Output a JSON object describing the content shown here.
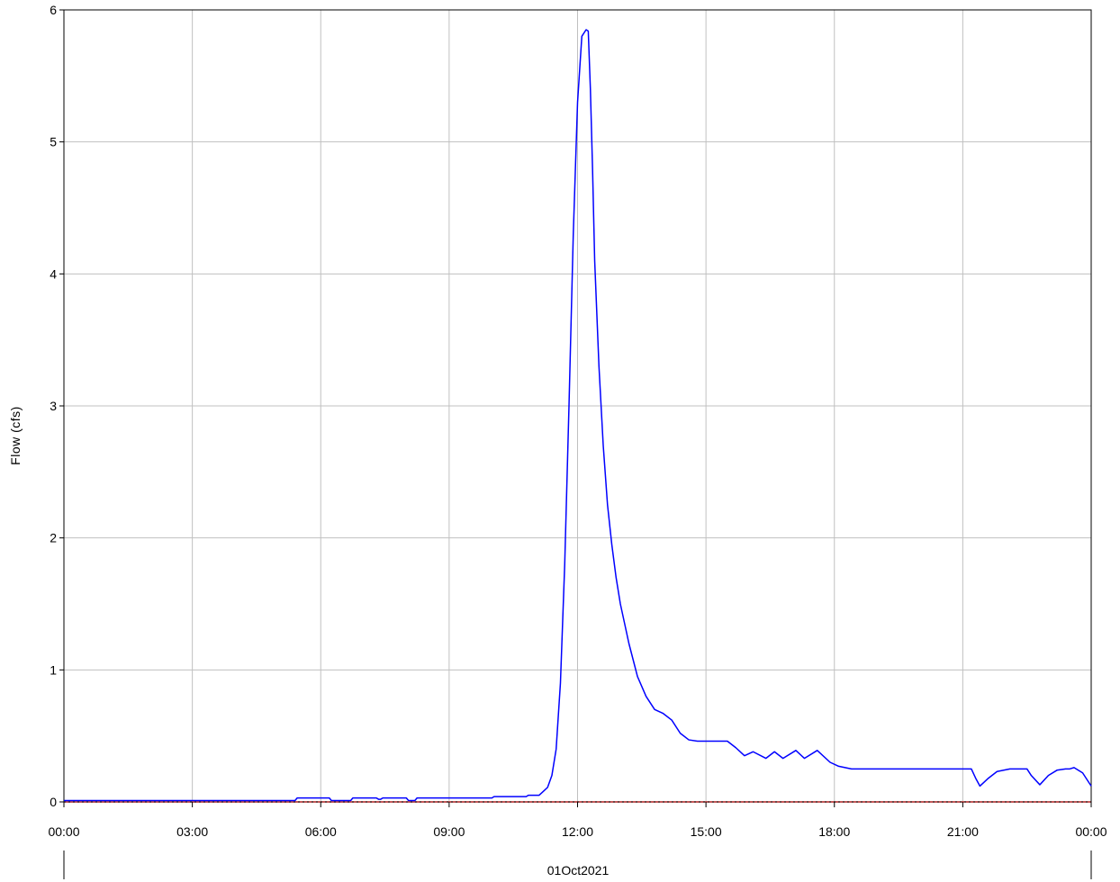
{
  "chart_data": {
    "type": "line",
    "title": "",
    "xlabel": "01Oct2021",
    "ylabel": "Flow (cfs)",
    "xlim_hours": [
      0,
      24
    ],
    "ylim": [
      0,
      6
    ],
    "grid": true,
    "x_tick_labels": [
      "00:00",
      "03:00",
      "06:00",
      "09:00",
      "12:00",
      "15:00",
      "18:00",
      "21:00",
      "00:00"
    ],
    "y_tick_labels": [
      "0",
      "1",
      "2",
      "3",
      "4",
      "5",
      "6"
    ],
    "colors": {
      "flow_line": "#0000ff",
      "baseline": "#b22222",
      "grid": "#c0c0c0",
      "axis": "#000000"
    },
    "series": [
      {
        "name": "",
        "color": "#0000ff",
        "x_hours": [
          0,
          5.4,
          5.45,
          6.2,
          6.25,
          6.7,
          6.75,
          7.3,
          7.35,
          7.4,
          7.45,
          8.0,
          8.05,
          8.2,
          8.25,
          10.0,
          10.05,
          10.8,
          10.85,
          11.1,
          11.2,
          11.3,
          11.4,
          11.5,
          11.6,
          11.7,
          11.8,
          11.9,
          12.0,
          12.1,
          12.2,
          12.25,
          12.3,
          12.35,
          12.4,
          12.5,
          12.6,
          12.7,
          12.8,
          12.9,
          13.0,
          13.1,
          13.2,
          13.4,
          13.6,
          13.8,
          14.0,
          14.2,
          14.4,
          14.6,
          14.8,
          15.0,
          15.5,
          15.7,
          15.9,
          16.1,
          16.4,
          16.6,
          16.8,
          17.1,
          17.3,
          17.6,
          17.9,
          18.1,
          18.4,
          20.0,
          21.2,
          21.3,
          21.4,
          21.6,
          21.8,
          22.1,
          22.3,
          22.5,
          22.6,
          22.8,
          23.0,
          23.2,
          23.4,
          23.5,
          23.6,
          23.8,
          24.0
        ],
        "y": [
          0.01,
          0.01,
          0.03,
          0.03,
          0.01,
          0.01,
          0.03,
          0.03,
          0.02,
          0.02,
          0.03,
          0.03,
          0.01,
          0.01,
          0.03,
          0.03,
          0.04,
          0.04,
          0.05,
          0.05,
          0.08,
          0.11,
          0.2,
          0.4,
          0.9,
          1.8,
          3.0,
          4.3,
          5.3,
          5.8,
          5.85,
          5.84,
          5.4,
          4.8,
          4.1,
          3.3,
          2.7,
          2.25,
          1.95,
          1.7,
          1.5,
          1.35,
          1.2,
          0.95,
          0.8,
          0.7,
          0.67,
          0.62,
          0.52,
          0.47,
          0.46,
          0.46,
          0.46,
          0.41,
          0.35,
          0.38,
          0.33,
          0.38,
          0.33,
          0.39,
          0.33,
          0.39,
          0.3,
          0.27,
          0.25,
          0.25,
          0.25,
          0.18,
          0.12,
          0.18,
          0.23,
          0.25,
          0.25,
          0.25,
          0.2,
          0.13,
          0.2,
          0.24,
          0.25,
          0.25,
          0.26,
          0.22,
          0.12
        ]
      }
    ],
    "baseline": {
      "y": 0,
      "style": "dashed"
    }
  }
}
